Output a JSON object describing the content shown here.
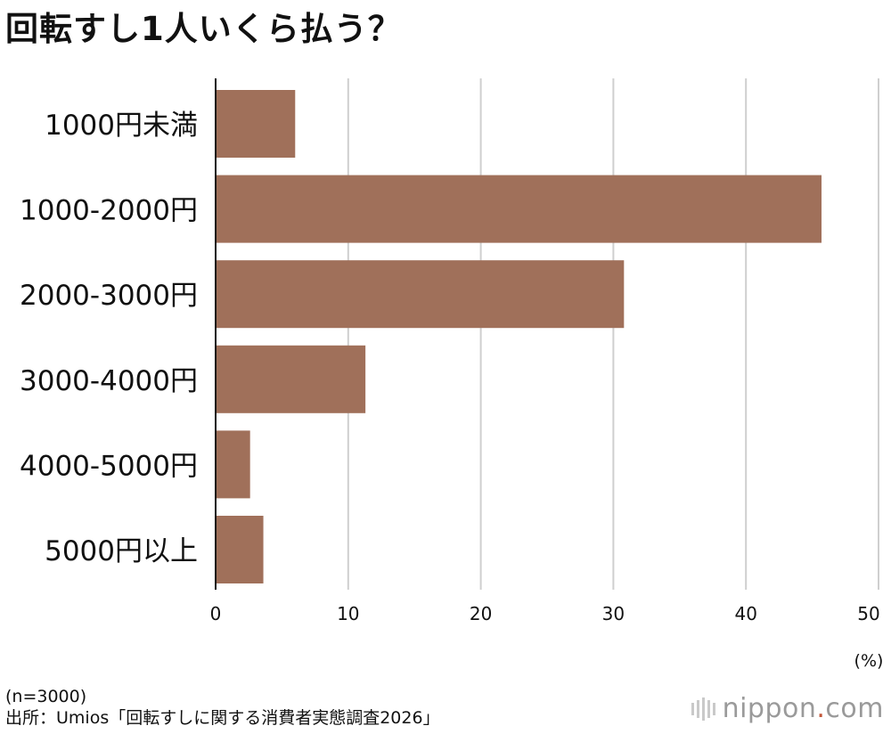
{
  "title": "回転すし1人いくら払う？",
  "chart_data": {
    "type": "bar",
    "orientation": "horizontal",
    "categories": [
      "1000円未満",
      "1000-2000円",
      "2000-3000円",
      "3000-4000円",
      "4000-5000円",
      "5000円以上"
    ],
    "values": [
      6.0,
      45.7,
      30.8,
      11.3,
      2.6,
      3.6
    ],
    "xlim": [
      0,
      50
    ],
    "xticks": [
      0,
      10,
      20,
      30,
      40,
      50
    ],
    "unit_label": "(%)",
    "grid": true,
    "bar_color": "#a0705a",
    "grid_color": "#cfcfcf"
  },
  "footer": {
    "sample": "(n=3000)",
    "source": "出所：Umios「回転すしに関する消費者実態調査2026」"
  },
  "logo": {
    "text": "nippon",
    "suffix": "com"
  }
}
